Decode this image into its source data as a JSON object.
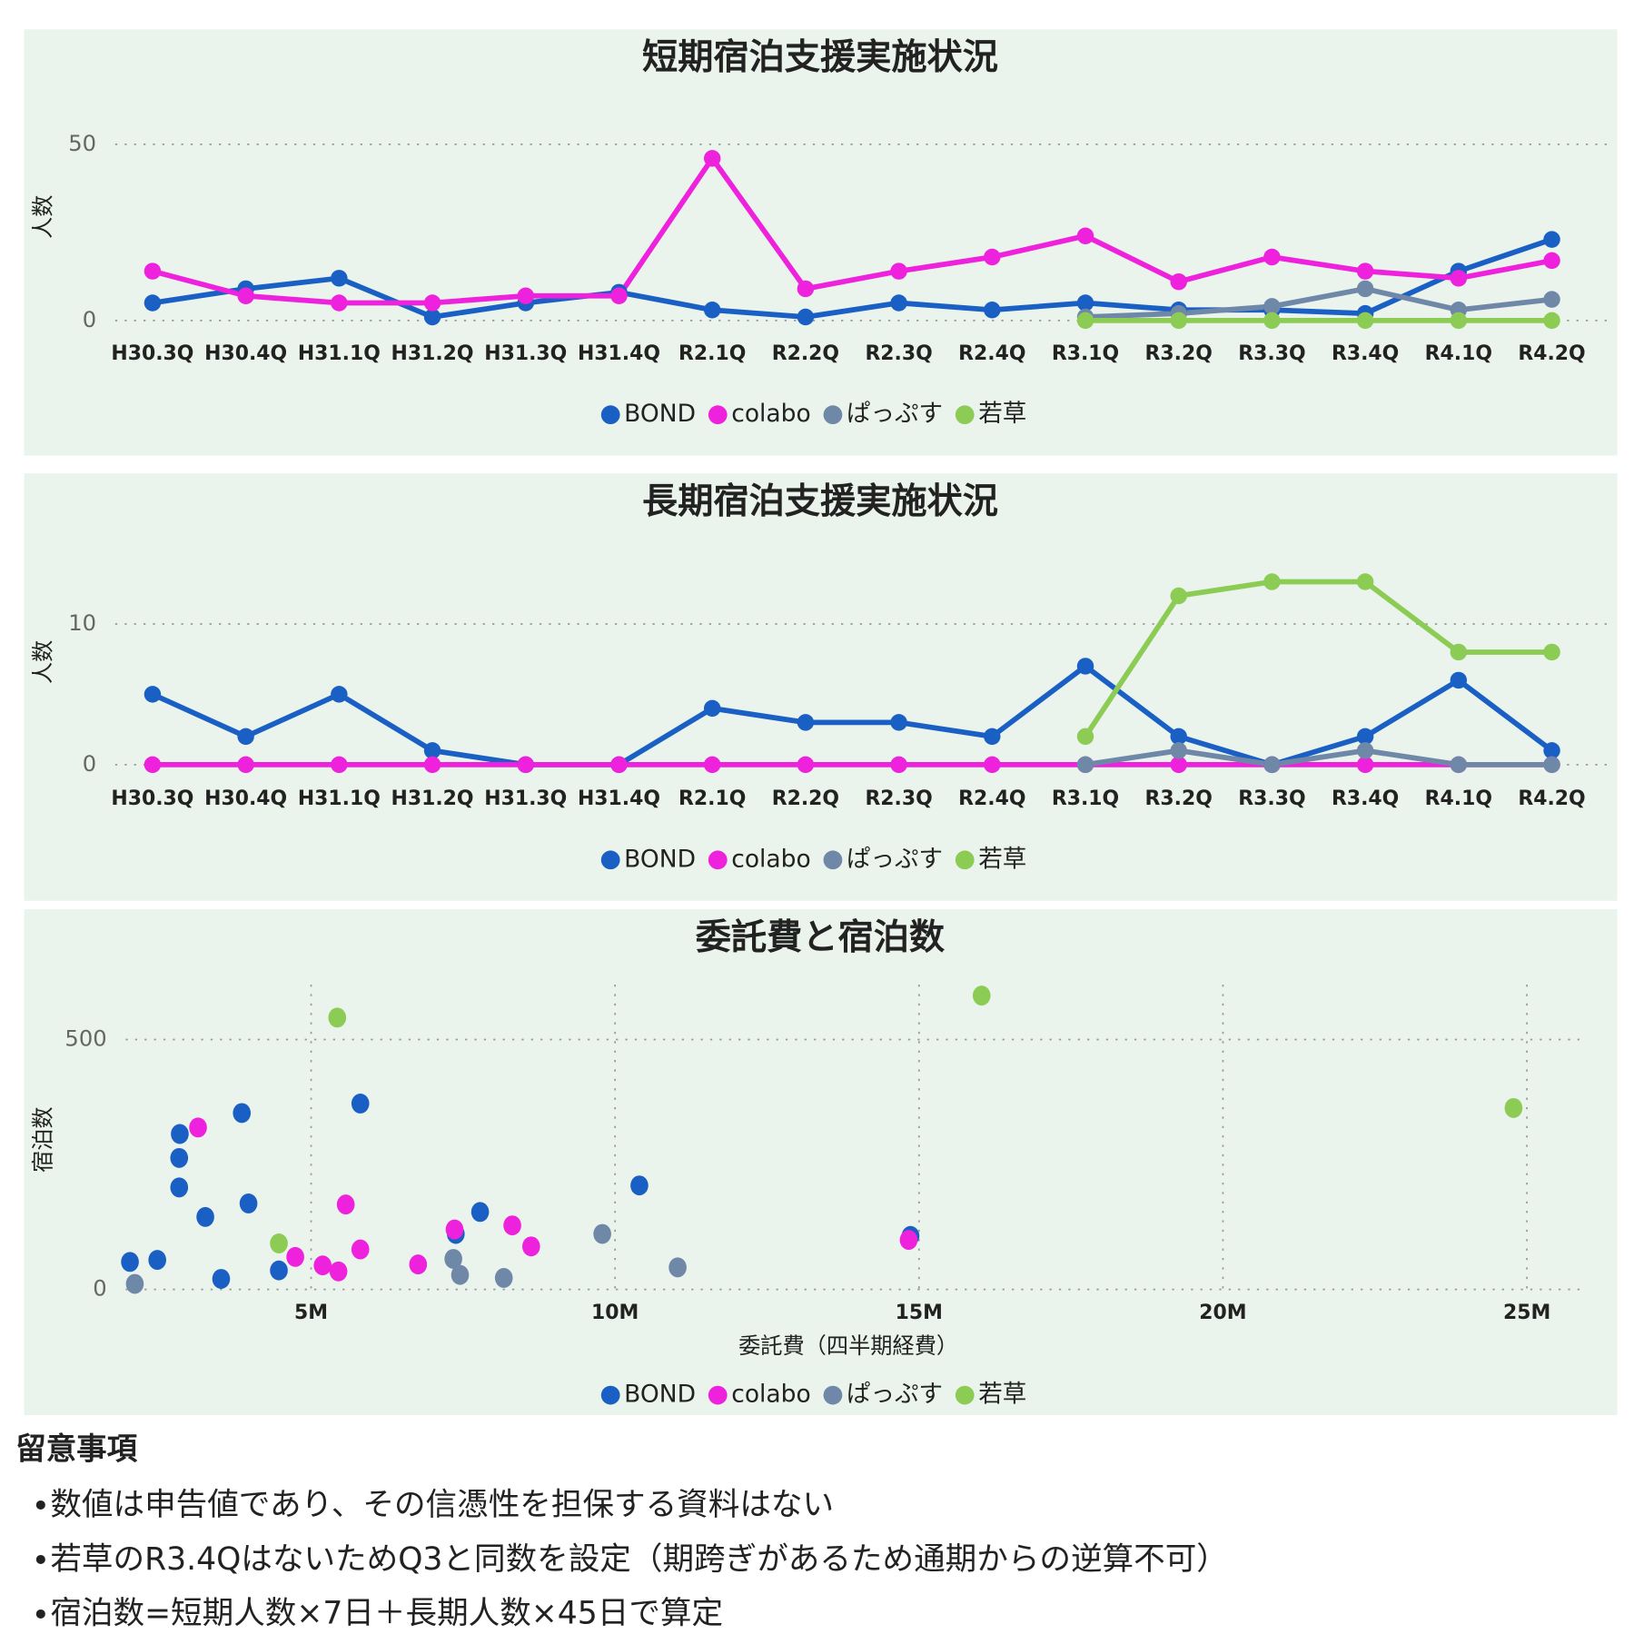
{
  "chart_data": [
    {
      "type": "line",
      "title": "短期宿泊支援実施状況",
      "y_label": "人数",
      "categories": [
        "H30.3Q",
        "H30.4Q",
        "H31.1Q",
        "H31.2Q",
        "H31.3Q",
        "H31.4Q",
        "R2.1Q",
        "R2.2Q",
        "R2.3Q",
        "R2.4Q",
        "R3.1Q",
        "R3.2Q",
        "R3.3Q",
        "R3.4Q",
        "R4.1Q",
        "R4.2Q"
      ],
      "ylim": [
        0,
        52
      ],
      "yticks": [
        0,
        50
      ],
      "grid": true,
      "series": [
        {
          "name": "BOND",
          "color": "#1a5fc4",
          "values": [
            5,
            9,
            12,
            1,
            5,
            8,
            3,
            1,
            5,
            3,
            5,
            3,
            3,
            2,
            14,
            23
          ]
        },
        {
          "name": "colabo",
          "color": "#ee22dd",
          "values": [
            14,
            7,
            5,
            5,
            7,
            7,
            46,
            9,
            14,
            18,
            24,
            11,
            18,
            14,
            12,
            17
          ]
        },
        {
          "name": "ぱっぷす",
          "color": "#7088a8",
          "values": [
            null,
            null,
            null,
            null,
            null,
            null,
            null,
            null,
            null,
            null,
            1,
            2,
            4,
            9,
            3,
            6
          ]
        },
        {
          "name": "若草",
          "color": "#8ccc55",
          "values": [
            null,
            null,
            null,
            null,
            null,
            null,
            null,
            null,
            null,
            null,
            0,
            0,
            0,
            0,
            0,
            0
          ]
        }
      ]
    },
    {
      "type": "line",
      "title": "長期宿泊支援実施状況",
      "y_label": "人数",
      "categories": [
        "H30.3Q",
        "H30.4Q",
        "H31.1Q",
        "H31.2Q",
        "H31.3Q",
        "H31.4Q",
        "R2.1Q",
        "R2.2Q",
        "R2.3Q",
        "R2.4Q",
        "R3.1Q",
        "R3.2Q",
        "R3.3Q",
        "R3.4Q",
        "R4.1Q",
        "R4.2Q"
      ],
      "ylim": [
        0,
        14
      ],
      "yticks": [
        0,
        10
      ],
      "grid": true,
      "series": [
        {
          "name": "BOND",
          "color": "#1a5fc4",
          "values": [
            5,
            2,
            5,
            1,
            0,
            0,
            4,
            3,
            3,
            2,
            7,
            2,
            0,
            2,
            6,
            1
          ]
        },
        {
          "name": "colabo",
          "color": "#ee22dd",
          "values": [
            0,
            0,
            0,
            0,
            0,
            0,
            0,
            0,
            0,
            0,
            0,
            0,
            0,
            0,
            0,
            0
          ]
        },
        {
          "name": "ぱっぷす",
          "color": "#7088a8",
          "values": [
            null,
            null,
            null,
            null,
            null,
            null,
            null,
            null,
            null,
            null,
            0,
            1,
            0,
            1,
            0,
            0
          ]
        },
        {
          "name": "若草",
          "color": "#8ccc55",
          "values": [
            null,
            null,
            null,
            null,
            null,
            null,
            null,
            null,
            null,
            null,
            2,
            12,
            13,
            13,
            8,
            8
          ]
        }
      ]
    },
    {
      "type": "scatter",
      "title": "委託費と宿泊数",
      "x_label": "委託費（四半期経費）",
      "y_label": "宿泊数",
      "xlim": [
        1950000,
        25900000
      ],
      "xticks": [
        {
          "value": 5000000,
          "label": "5M"
        },
        {
          "value": 10000000,
          "label": "10M"
        },
        {
          "value": 15000000,
          "label": "15M"
        },
        {
          "value": 20000000,
          "label": "20M"
        },
        {
          "value": 25000000,
          "label": "25M"
        }
      ],
      "ylim": [
        0,
        610
      ],
      "yticks": [
        0,
        500
      ],
      "grid": true,
      "series": [
        {
          "name": "BOND",
          "color": "#1a5fc4",
          "x": [
            2020000,
            2470000,
            2840000,
            2830000,
            2830000,
            3260000,
            3520000,
            3860000,
            3970000,
            4470000,
            5810000,
            7380000,
            7780000,
            10400000,
            14860000
          ],
          "values": [
            55,
            59,
            311,
            263,
            204,
            145,
            21,
            353,
            172,
            38,
            372,
            111,
            155,
            208,
            107
          ]
        },
        {
          "name": "colabo",
          "color": "#ee22dd",
          "x": [
            3140000,
            4740000,
            5190000,
            5450000,
            5570000,
            5810000,
            6760000,
            7360000,
            8310000,
            8620000,
            14830000
          ],
          "values": [
            324,
            65,
            48,
            36,
            170,
            80,
            50,
            120,
            128,
            86,
            99
          ]
        },
        {
          "name": "ぱっぷす",
          "color": "#7088a8",
          "x": [
            2100000,
            7340000,
            7450000,
            8170000,
            9790000,
            11030000
          ],
          "values": [
            11,
            61,
            29,
            23,
            111,
            44
          ]
        },
        {
          "name": "若草",
          "color": "#8ccc55",
          "x": [
            4470000,
            5430000,
            16030000,
            24780000
          ],
          "values": [
            92,
            544,
            588,
            363
          ]
        }
      ]
    }
  ],
  "notes": {
    "title": "留意事項",
    "items": [
      "数値は申告値であり、その信憑性を担保する資料はない",
      "若草のR3.4QはないためQ3と同数を設定（期跨ぎがあるため通期からの逆算不可）",
      "宿泊数=短期人数×7日＋長期人数×45日で算定"
    ]
  }
}
